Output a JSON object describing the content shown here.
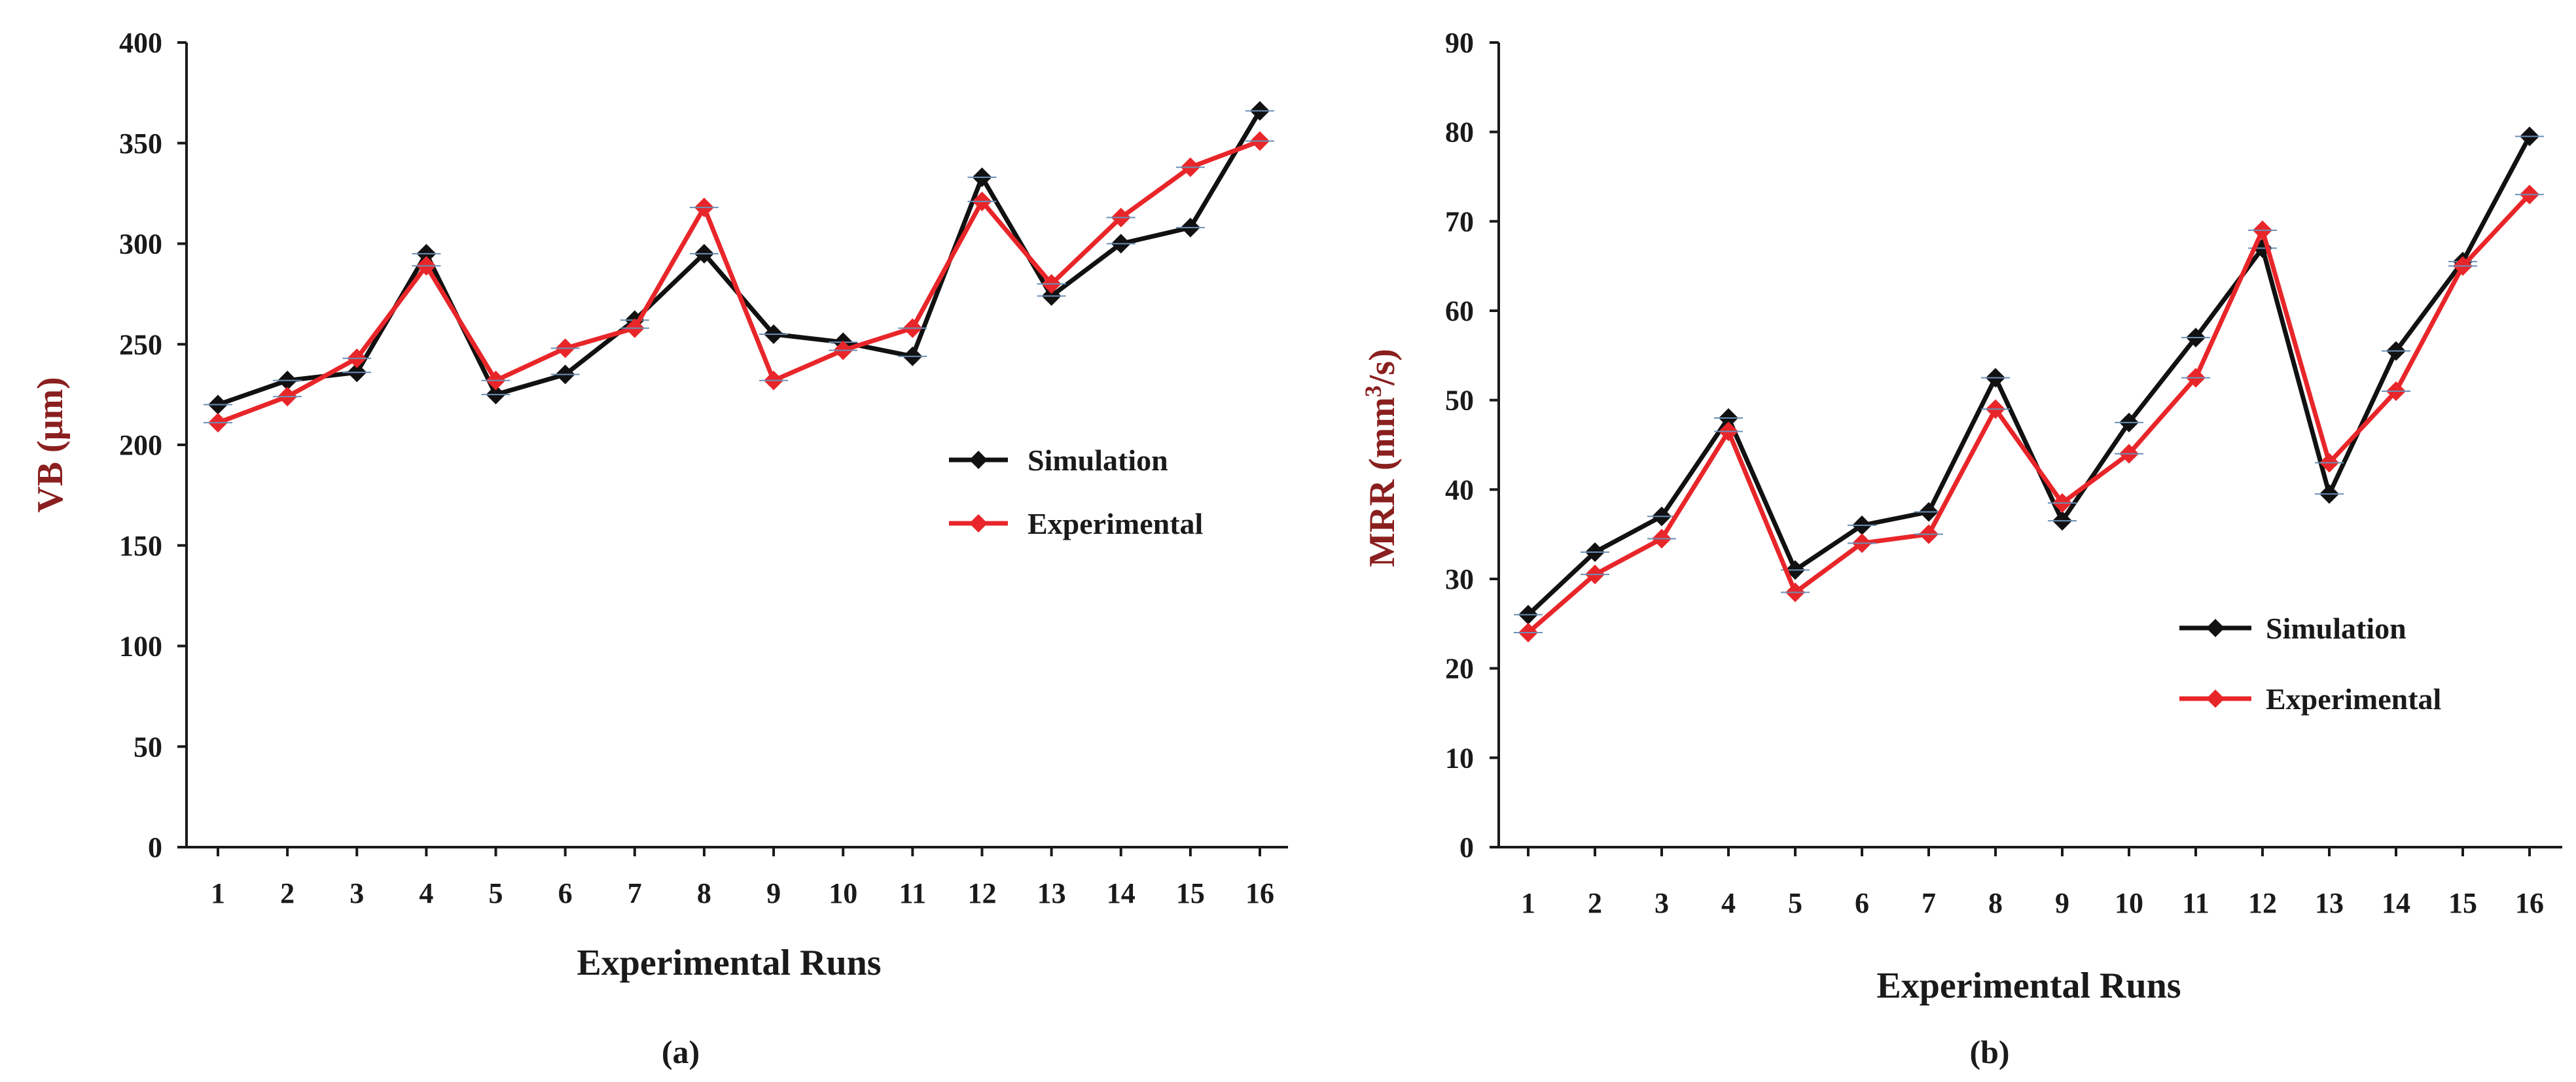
{
  "chart_data": [
    {
      "type": "line",
      "panel_label": "(a)",
      "xlabel": "Experimental Runs",
      "ylabel_main": "VB (μm)",
      "ylabel_sup": "",
      "ylabel_tail": "",
      "categories": [
        "1",
        "2",
        "3",
        "4",
        "5",
        "6",
        "7",
        "8",
        "9",
        "10",
        "11",
        "12",
        "13",
        "14",
        "15",
        "16"
      ],
      "ylim": [
        0,
        400
      ],
      "yticks": [
        0,
        50,
        100,
        150,
        200,
        250,
        300,
        350,
        400
      ],
      "grid": false,
      "legend_position": "right-middle",
      "series": [
        {
          "name": "Simulation",
          "color": "#111111",
          "values": [
            220,
            232,
            236,
            295,
            225,
            235,
            262,
            295,
            255,
            251,
            244,
            333,
            274,
            300,
            308,
            366
          ]
        },
        {
          "name": "Experimental",
          "color": "#e8262a",
          "values": [
            211,
            224,
            243,
            289,
            232,
            248,
            258,
            318,
            232,
            247,
            258,
            321,
            280,
            313,
            338,
            351
          ]
        }
      ]
    },
    {
      "type": "line",
      "panel_label": "(b)",
      "xlabel": "Experimental Runs",
      "ylabel_main": "MRR (mm",
      "ylabel_sup": "3",
      "ylabel_tail": "/s)",
      "categories": [
        "1",
        "2",
        "3",
        "4",
        "5",
        "6",
        "7",
        "8",
        "9",
        "10",
        "11",
        "12",
        "13",
        "14",
        "15",
        "16"
      ],
      "ylim": [
        0,
        90
      ],
      "yticks": [
        0,
        10,
        20,
        30,
        40,
        50,
        60,
        70,
        80,
        90
      ],
      "grid": false,
      "legend_position": "right-lower",
      "series": [
        {
          "name": "Simulation",
          "color": "#111111",
          "values": [
            26,
            33,
            37,
            48,
            31,
            36,
            37.5,
            52.5,
            36.5,
            47.5,
            57,
            67,
            39.5,
            55.5,
            65.5,
            79.5
          ]
        },
        {
          "name": "Experimental",
          "color": "#e8262a",
          "values": [
            24,
            30.5,
            34.5,
            46.5,
            28.5,
            34,
            35,
            49,
            38.5,
            44,
            52.5,
            69,
            43,
            51,
            65,
            73
          ]
        }
      ]
    }
  ]
}
